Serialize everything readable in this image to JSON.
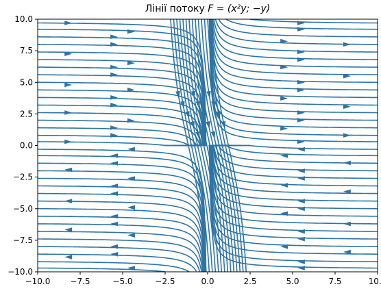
{
  "chart_data": {
    "type": "streamplot",
    "title_prefix": "Лінії потоку ",
    "title_formula": "F = (x²y; −y)",
    "field": {
      "u": "x^2*y",
      "v": "-y"
    },
    "xlim": [
      -10,
      10
    ],
    "ylim": [
      -10,
      10
    ],
    "x_ticks": [
      -10,
      -7.5,
      -5,
      -2.5,
      0,
      2.5,
      5,
      7.5,
      10
    ],
    "y_ticks": [
      -10,
      -7.5,
      -5,
      -2.5,
      0,
      2.5,
      5,
      7.5,
      10
    ],
    "x_tick_labels": [
      "−10.0",
      "−7.5",
      "−5.0",
      "−2.5",
      "0.0",
      "2.5",
      "5.0",
      "7.5",
      "10.0"
    ],
    "y_tick_labels": [
      "−10.0",
      "−7.5",
      "−5.0",
      "−2.5",
      "0.0",
      "2.5",
      "5.0",
      "7.5",
      "10.0"
    ],
    "grid": false,
    "line_color": "#2e74a3",
    "streamline_seed_y": [
      9.7,
      9.2,
      8.6,
      8.0,
      7.4,
      6.8,
      6.2,
      5.6,
      5.0,
      4.4,
      3.8,
      3.2,
      2.6,
      2.0,
      1.4,
      0.8,
      0.3,
      -0.3,
      -0.8,
      -1.4,
      -2.0,
      -2.6,
      -3.2,
      -3.8,
      -4.4,
      -5.0,
      -5.6,
      -6.2,
      -6.8,
      -7.4,
      -8.0,
      -8.6,
      -9.2,
      -9.7
    ]
  }
}
